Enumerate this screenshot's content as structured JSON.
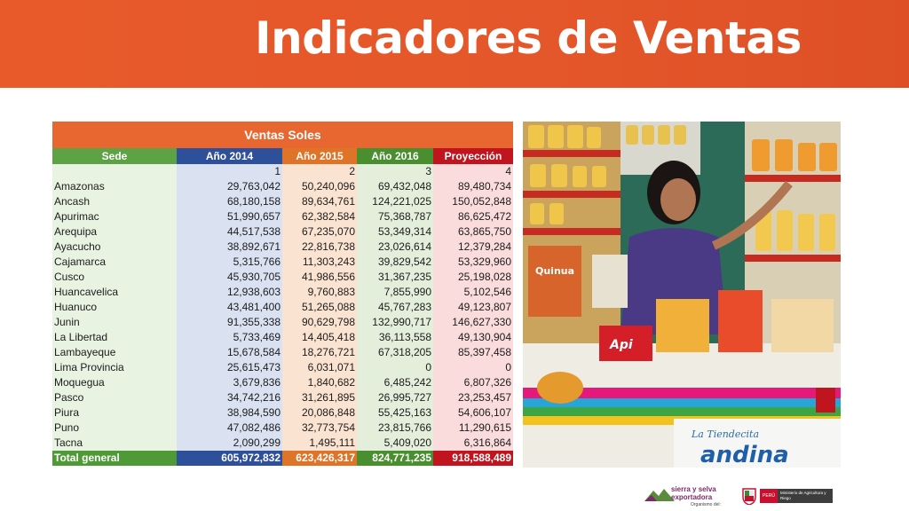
{
  "slide": {
    "title": "Indicadores de Ventas"
  },
  "table": {
    "caption": "Ventas Soles",
    "headers": [
      "Sede",
      "Año 2014",
      "Año 2015",
      "Año 2016",
      "Proyección"
    ],
    "index_row": [
      "",
      "1",
      "2",
      "3",
      "4"
    ],
    "rows": [
      [
        "Amazonas",
        "29,763,042",
        "50,240,096",
        "69,432,048",
        "89,480,734"
      ],
      [
        "Ancash",
        "68,180,158",
        "89,634,761",
        "124,221,025",
        "150,052,848"
      ],
      [
        "Apurimac",
        "51,990,657",
        "62,382,584",
        "75,368,787",
        "86,625,472"
      ],
      [
        "Arequipa",
        "44,517,538",
        "67,235,070",
        "53,349,314",
        "63,865,750"
      ],
      [
        "Ayacucho",
        "38,892,671",
        "22,816,738",
        "23,026,614",
        "12,379,284"
      ],
      [
        "Cajamarca",
        "5,315,766",
        "11,303,243",
        "39,829,542",
        "53,329,960"
      ],
      [
        "Cusco",
        "45,930,705",
        "41,986,556",
        "31,367,235",
        "25,198,028"
      ],
      [
        "Huancavelica",
        "12,938,603",
        "9,760,883",
        "7,855,990",
        "5,102,546"
      ],
      [
        "Huanuco",
        "43,481,400",
        "51,265,088",
        "45,767,283",
        "49,123,807"
      ],
      [
        "Junin",
        "91,355,338",
        "90,629,798",
        "132,990,717",
        "146,627,330"
      ],
      [
        "La Libertad",
        "5,733,469",
        "14,405,418",
        "36,113,558",
        "49,130,904"
      ],
      [
        "Lambayeque",
        "15,678,584",
        "18,276,721",
        "67,318,205",
        "85,397,458"
      ],
      [
        "Lima Provincia",
        "25,615,473",
        "6,031,071",
        "0",
        "0"
      ],
      [
        "Moquegua",
        "3,679,836",
        "1,840,682",
        "6,485,242",
        "6,807,326"
      ],
      [
        "Pasco",
        "34,742,216",
        "31,261,895",
        "26,995,727",
        "23,253,457"
      ],
      [
        "Piura",
        "38,984,590",
        "20,086,848",
        "55,425,163",
        "54,606,107"
      ],
      [
        "Puno",
        "47,082,486",
        "32,773,754",
        "23,815,766",
        "11,290,615"
      ],
      [
        "Tacna",
        "2,090,299",
        "1,495,111",
        "5,409,020",
        "6,316,864"
      ]
    ],
    "total": [
      "Total general",
      "605,972,832",
      "623,426,317",
      "824,771,235",
      "918,588,489"
    ]
  },
  "photo": {
    "sign_line1": "La Tiendecita",
    "sign_line2": "andina",
    "product_label1": "Quinua",
    "product_label2": "Api"
  },
  "logos": {
    "sye_line1": "sierra y selva",
    "sye_line2": "exportadora",
    "sye_line3": "Organismo del:",
    "peru": "PERÚ",
    "ministry": "Ministerio de Agricultura y Riego"
  },
  "colors": {
    "banner": "#e4572a",
    "sede": "#5da245",
    "y2014": "#2e4f9a",
    "y2015": "#dd7427",
    "y2016": "#4a8f2f",
    "proyeccion": "#c0151e"
  }
}
